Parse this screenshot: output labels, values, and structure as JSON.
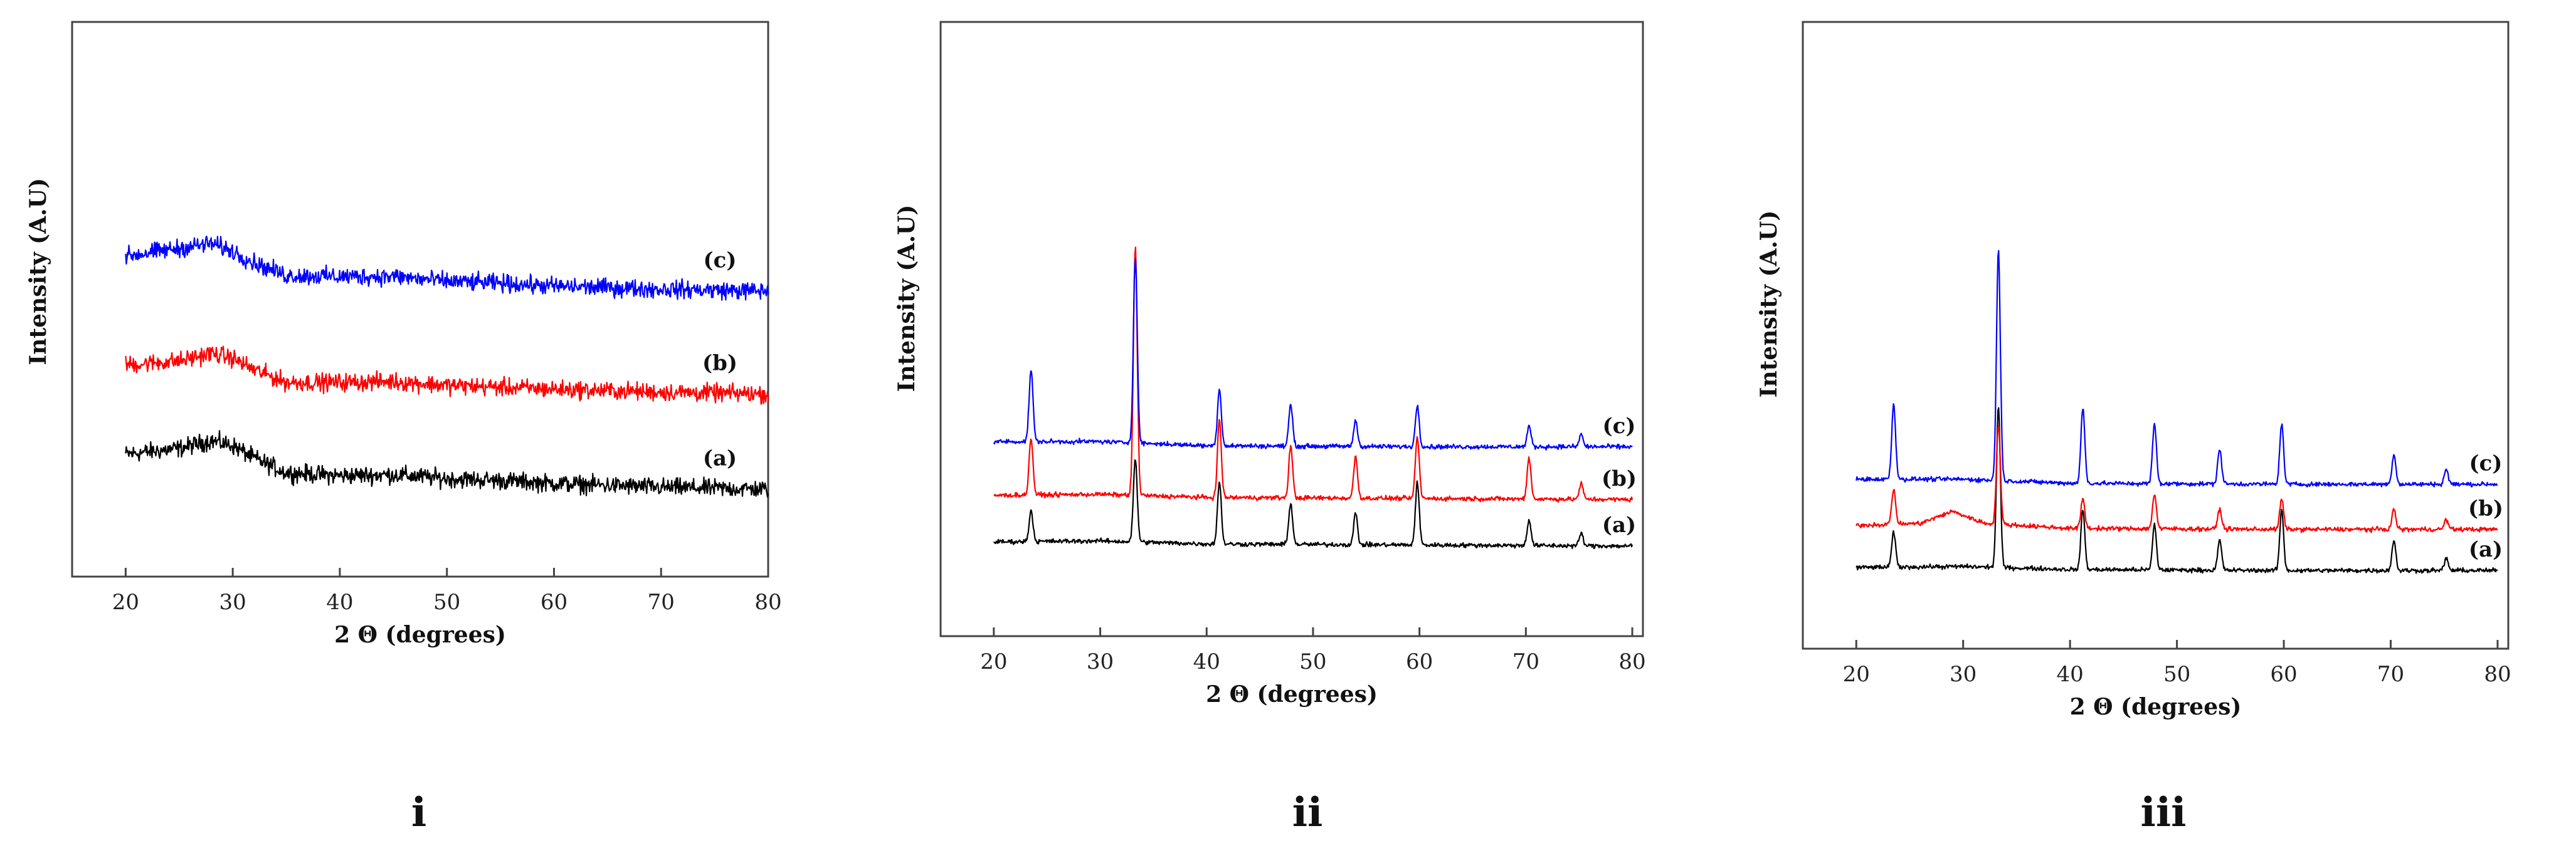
{
  "chart_data": [
    {
      "type": "line",
      "panel_label": "i",
      "xlabel": "2 Θ (degrees)",
      "ylabel": "Intensity (A.U)",
      "xlim": [
        15,
        80
      ],
      "xticks": [
        20,
        30,
        40,
        50,
        60,
        70,
        80
      ],
      "series": [
        {
          "name": "(a)",
          "color": "#000000",
          "offset": 0,
          "points": [
            [
              20,
              46
            ],
            [
              25,
              52
            ],
            [
              28,
              60
            ],
            [
              30,
              55
            ],
            [
              32,
              42
            ],
            [
              35,
              27
            ],
            [
              40,
              24
            ],
            [
              45,
              25
            ],
            [
              50,
              21
            ],
            [
              55,
              19
            ],
            [
              60,
              16
            ],
            [
              70,
              12
            ],
            [
              80,
              10
            ]
          ]
        },
        {
          "name": "(b)",
          "color": "#ff0000",
          "offset": 100,
          "points": [
            [
              20,
              38
            ],
            [
              25,
              42
            ],
            [
              28,
              50
            ],
            [
              30,
              45
            ],
            [
              32,
              33
            ],
            [
              35,
              20
            ],
            [
              40,
              20
            ],
            [
              45,
              21
            ],
            [
              50,
              17
            ],
            [
              55,
              15
            ],
            [
              60,
              13
            ],
            [
              70,
              10
            ],
            [
              80,
              8
            ]
          ]
        },
        {
          "name": "(c)",
          "color": "#0000ff",
          "offset": 205,
          "points": [
            [
              20,
              45
            ],
            [
              25,
              53
            ],
            [
              28,
              58
            ],
            [
              30,
              50
            ],
            [
              32,
              38
            ],
            [
              35,
              25
            ],
            [
              40,
              24
            ],
            [
              45,
              24
            ],
            [
              50,
              19
            ],
            [
              55,
              17
            ],
            [
              60,
              14
            ],
            [
              70,
              11
            ],
            [
              80,
              9
            ]
          ]
        }
      ]
    },
    {
      "type": "line",
      "panel_label": "ii",
      "xlabel": "2 Θ (degrees)",
      "ylabel": "Intensity (A.U)",
      "xlim": [
        15,
        81
      ],
      "xticks": [
        20,
        30,
        40,
        50,
        60,
        70,
        80
      ],
      "peaks": [
        23.5,
        33.3,
        41.2,
        47.9,
        54.0,
        59.8,
        70.3,
        75.2
      ],
      "series": [
        {
          "name": "(a)",
          "color": "#000000",
          "offset": 0,
          "baseline": [
            [
              20,
              8
            ],
            [
              30,
              9
            ],
            [
              40,
              6
            ],
            [
              60,
              5
            ],
            [
              80,
              4
            ]
          ],
          "peak_heights": [
            30,
            80,
            60,
            40,
            30,
            60,
            25,
            12
          ]
        },
        {
          "name": "(b)",
          "color": "#ff0000",
          "offset": 45,
          "baseline": [
            [
              20,
              8
            ],
            [
              30,
              9
            ],
            [
              40,
              6
            ],
            [
              60,
              5
            ],
            [
              80,
              4
            ]
          ],
          "peak_heights": [
            55,
            240,
            75,
            50,
            40,
            60,
            40,
            15
          ]
        },
        {
          "name": "(c)",
          "color": "#0000ff",
          "offset": 95,
          "baseline": [
            [
              20,
              10
            ],
            [
              30,
              10
            ],
            [
              40,
              6
            ],
            [
              60,
              5
            ],
            [
              80,
              5
            ]
          ],
          "peak_heights": [
            70,
            180,
            55,
            40,
            25,
            40,
            20,
            12
          ]
        }
      ]
    },
    {
      "type": "line",
      "panel_label": "iii",
      "xlabel": "2 Θ (degrees)",
      "ylabel": "Intensity (A.U)",
      "xlim": [
        15,
        81
      ],
      "xticks": [
        20,
        30,
        40,
        50,
        60,
        70,
        80
      ],
      "peaks": [
        23.5,
        33.3,
        41.2,
        47.9,
        54.0,
        59.8,
        70.3,
        75.2
      ],
      "series": [
        {
          "name": "(a)",
          "color": "#000000",
          "offset": 0,
          "baseline": [
            [
              20,
              6
            ],
            [
              30,
              7
            ],
            [
              40,
              4
            ],
            [
              60,
              3
            ],
            [
              80,
              3
            ]
          ],
          "peak_heights": [
            35,
            160,
            60,
            45,
            30,
            60,
            30,
            12
          ]
        },
        {
          "name": "(b)",
          "color": "#ff0000",
          "offset": 40,
          "baseline": [
            [
              20,
              8
            ],
            [
              26,
              10
            ],
            [
              29,
              22
            ],
            [
              32,
              10
            ],
            [
              40,
              5
            ],
            [
              60,
              4
            ],
            [
              80,
              4
            ]
          ],
          "peak_heights": [
            35,
            100,
            30,
            35,
            20,
            30,
            20,
            10
          ]
        },
        {
          "name": "(c)",
          "color": "#0000ff",
          "offset": 85,
          "baseline": [
            [
              20,
              9
            ],
            [
              30,
              9
            ],
            [
              40,
              5
            ],
            [
              60,
              4
            ],
            [
              80,
              4
            ]
          ],
          "peak_heights": [
            75,
            230,
            75,
            60,
            35,
            60,
            30,
            15
          ]
        }
      ]
    }
  ]
}
